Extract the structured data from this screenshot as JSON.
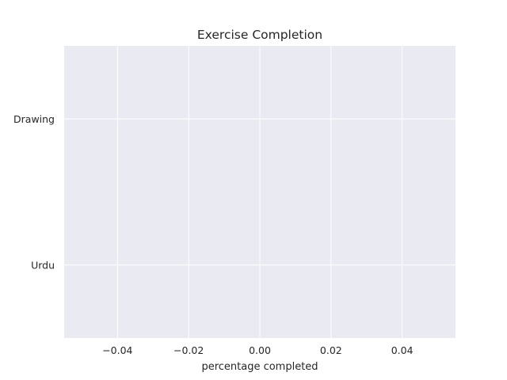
{
  "chart_data": {
    "type": "bar",
    "orientation": "horizontal",
    "title": "Exercise Completion",
    "xlabel": "percentage completed",
    "ylabel": "",
    "categories": [
      "Urdu",
      "Drawing"
    ],
    "values": [
      0,
      0
    ],
    "xlim": [
      -0.055,
      0.055
    ],
    "xticks": [
      -0.04,
      -0.02,
      0.0,
      0.02,
      0.04
    ],
    "xtick_labels": [
      "−0.04",
      "−0.02",
      "0.00",
      "0.02",
      "0.04"
    ],
    "grid": true,
    "colors": {
      "background": "#eaeaf2",
      "grid": "#ffffff",
      "text": "#262626"
    }
  }
}
